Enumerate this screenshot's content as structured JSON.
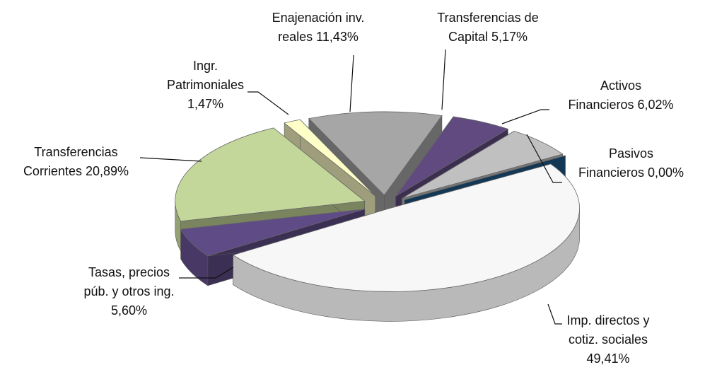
{
  "chart_data": {
    "type": "pie3d",
    "categories": [
      "Imp. directos y cotiz. sociales",
      "Tasas, precios púb. y otros ing.",
      "Transferencias Corrientes",
      "Ingr. Patrimoniales",
      "Enajenación inv. reales",
      "Transferencias de Capital",
      "Activos Financieros",
      "Pasivos Financieros"
    ],
    "values": [
      49.41,
      5.6,
      20.89,
      1.47,
      11.43,
      5.17,
      6.02,
      0.0
    ],
    "value_labels": [
      "49,41%",
      "5,60%",
      "20,89%",
      "1,47%",
      "11,43%",
      "5,17%",
      "6,02%",
      "0,00%"
    ],
    "colors": [
      "#f7f7f7",
      "#5f4b86",
      "#c4d79b",
      "#ffffc8",
      "#a6a6a6",
      "#604a80",
      "#c0c0c0",
      "#1f5a8a"
    ]
  }
}
